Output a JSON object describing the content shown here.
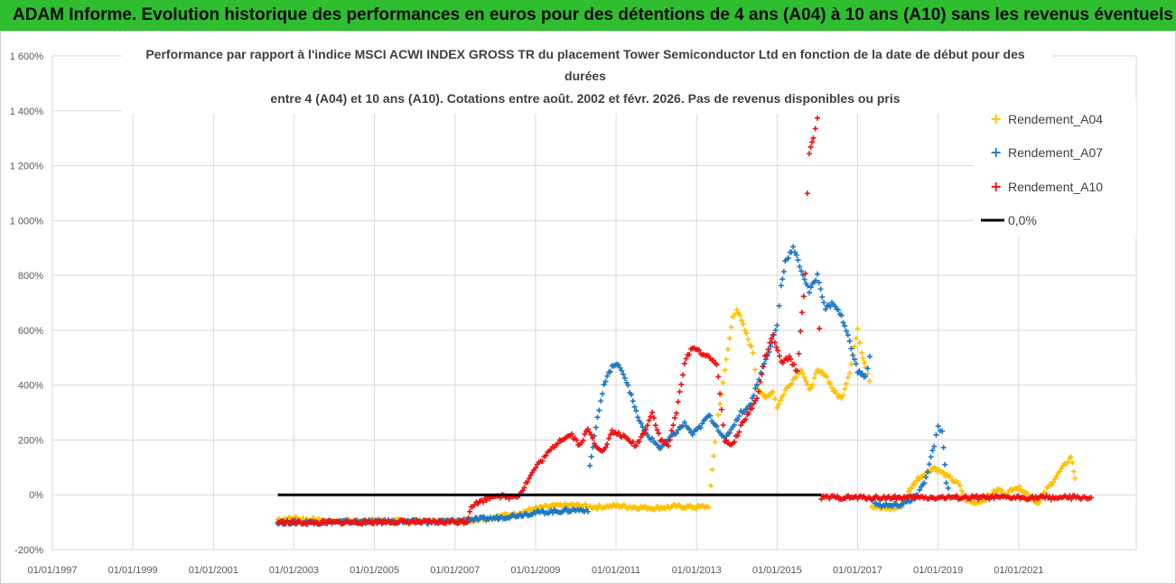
{
  "header": {
    "banner": "ADAM Informe. Evolution historique des performances en euros pour des détentions de 4 ans (A04) à 10 ans (A10) sans les revenus éventuels"
  },
  "colors": {
    "banner_bg": "#2fbe2f",
    "a04": "#ffc000",
    "a07": "#1f77c4",
    "a10": "#ee1111",
    "zero": "#000000"
  },
  "chart_data": {
    "type": "scatter",
    "title_lines": [
      "Performance par rapport à l'indice MSCI ACWI INDEX GROSS TR  du placement Tower Semiconductor Ltd en fonction de la date de début pour des",
      "durées",
      "entre 4 (A04) et 10 ans (A10).  Cotations entre août. 2002 et févr. 2026. Pas de revenus disponibles ou pris"
    ],
    "xlim": [
      1997.0,
      2023.92
    ],
    "ylim": [
      -200,
      1600
    ],
    "y_ticks": [
      -200,
      0,
      200,
      400,
      600,
      800,
      1000,
      1200,
      1400,
      1600
    ],
    "y_tick_labels": [
      "-200%",
      "0%",
      "200%",
      "400%",
      "600%",
      "800%",
      "1 000%",
      "1 200%",
      "1 400%",
      "1 600%"
    ],
    "x_ticks": [
      1997,
      1999,
      2001,
      2003,
      2005,
      2007,
      2009,
      2011,
      2013,
      2015,
      2017,
      2019,
      2021
    ],
    "x_tick_labels": [
      "01/01/1997",
      "01/01/1999",
      "01/01/2001",
      "01/01/2003",
      "01/01/2005",
      "01/01/2007",
      "01/01/2009",
      "01/01/2011",
      "01/01/2013",
      "01/01/2015",
      "01/01/2017",
      "01/01/2019",
      "01/01/2021"
    ],
    "legend": [
      "Rendement_A04",
      "Rendement_A07",
      "Rendement_A10",
      "0,0%"
    ],
    "series": [
      {
        "name": "Rendement_A04",
        "points": [
          [
            2002.6,
            -90
          ],
          [
            2003.0,
            -85
          ],
          [
            2003.5,
            -92
          ],
          [
            2004.0,
            -95
          ],
          [
            2005.0,
            -95
          ],
          [
            2006.0,
            -97
          ],
          [
            2007.0,
            -96
          ],
          [
            2007.5,
            -90
          ],
          [
            2008.0,
            -80
          ],
          [
            2008.5,
            -70
          ],
          [
            2009.0,
            -50
          ],
          [
            2009.5,
            -40
          ],
          [
            2010.0,
            -38
          ],
          [
            2010.5,
            -45
          ],
          [
            2011.0,
            -40
          ],
          [
            2011.5,
            -45
          ],
          [
            2012.0,
            -48
          ],
          [
            2012.5,
            -42
          ],
          [
            2013.0,
            -45
          ],
          [
            2013.3,
            -42
          ],
          [
            2013.35,
            30
          ],
          [
            2013.5,
            250
          ],
          [
            2013.7,
            450
          ],
          [
            2013.9,
            650
          ],
          [
            2014.0,
            680
          ],
          [
            2014.2,
            600
          ],
          [
            2014.4,
            520
          ],
          [
            2014.5,
            400
          ],
          [
            2014.7,
            350
          ],
          [
            2014.9,
            380
          ],
          [
            2015.0,
            320
          ],
          [
            2015.2,
            380
          ],
          [
            2015.4,
            420
          ],
          [
            2015.6,
            460
          ],
          [
            2015.8,
            380
          ],
          [
            2016.0,
            450
          ],
          [
            2016.2,
            440
          ],
          [
            2016.4,
            380
          ],
          [
            2016.6,
            350
          ],
          [
            2016.8,
            450
          ],
          [
            2017.0,
            600
          ],
          [
            2017.1,
            520
          ],
          [
            2017.2,
            470
          ],
          [
            2017.3,
            420
          ],
          [
            2017.35,
            -40
          ],
          [
            2017.6,
            -50
          ],
          [
            2017.9,
            -50
          ],
          [
            2018.1,
            -40
          ],
          [
            2018.3,
            20
          ],
          [
            2018.5,
            60
          ],
          [
            2018.7,
            80
          ],
          [
            2018.9,
            100
          ],
          [
            2019.1,
            80
          ],
          [
            2019.3,
            60
          ],
          [
            2019.5,
            40
          ],
          [
            2019.7,
            -20
          ],
          [
            2019.9,
            -30
          ],
          [
            2020.1,
            -20
          ],
          [
            2020.3,
            0
          ],
          [
            2020.5,
            20
          ],
          [
            2020.7,
            0
          ],
          [
            2020.9,
            30
          ],
          [
            2021.1,
            20
          ],
          [
            2021.3,
            -10
          ],
          [
            2021.5,
            -30
          ],
          [
            2021.7,
            20
          ],
          [
            2021.9,
            60
          ],
          [
            2022.1,
            100
          ],
          [
            2022.3,
            140
          ],
          [
            2022.4,
            60
          ]
        ]
      },
      {
        "name": "Rendement_A07",
        "points": [
          [
            2002.6,
            -100
          ],
          [
            2003.5,
            -100
          ],
          [
            2004.5,
            -98
          ],
          [
            2005.5,
            -97
          ],
          [
            2006.5,
            -99
          ],
          [
            2007.5,
            -90
          ],
          [
            2008.0,
            -85
          ],
          [
            2008.5,
            -75
          ],
          [
            2009.0,
            -65
          ],
          [
            2009.5,
            -60
          ],
          [
            2010.0,
            -55
          ],
          [
            2010.3,
            -55
          ],
          [
            2010.35,
            100
          ],
          [
            2010.5,
            250
          ],
          [
            2010.7,
            400
          ],
          [
            2010.9,
            470
          ],
          [
            2011.1,
            470
          ],
          [
            2011.3,
            400
          ],
          [
            2011.5,
            300
          ],
          [
            2011.7,
            230
          ],
          [
            2011.9,
            200
          ],
          [
            2012.1,
            170
          ],
          [
            2012.3,
            200
          ],
          [
            2012.5,
            230
          ],
          [
            2012.7,
            260
          ],
          [
            2012.9,
            220
          ],
          [
            2013.1,
            250
          ],
          [
            2013.3,
            290
          ],
          [
            2013.5,
            250
          ],
          [
            2013.7,
            200
          ],
          [
            2013.9,
            250
          ],
          [
            2014.1,
            300
          ],
          [
            2014.3,
            320
          ],
          [
            2014.5,
            400
          ],
          [
            2014.6,
            450
          ],
          [
            2014.8,
            520
          ],
          [
            2015.0,
            620
          ],
          [
            2015.1,
            760
          ],
          [
            2015.2,
            850
          ],
          [
            2015.4,
            900
          ],
          [
            2015.6,
            820
          ],
          [
            2015.8,
            740
          ],
          [
            2016.0,
            800
          ],
          [
            2016.2,
            680
          ],
          [
            2016.4,
            700
          ],
          [
            2016.6,
            650
          ],
          [
            2016.8,
            560
          ],
          [
            2017.0,
            450
          ],
          [
            2017.2,
            430
          ],
          [
            2017.3,
            500
          ],
          [
            2017.35,
            -20
          ],
          [
            2017.6,
            -40
          ],
          [
            2017.9,
            -40
          ],
          [
            2018.1,
            -35
          ],
          [
            2018.3,
            -20
          ],
          [
            2018.5,
            0
          ],
          [
            2018.7,
            60
          ],
          [
            2018.9,
            180
          ],
          [
            2019.0,
            250
          ],
          [
            2019.1,
            230
          ],
          [
            2019.2,
            50
          ],
          [
            2019.3,
            -10
          ]
        ]
      },
      {
        "name": "Rendement_A10",
        "points": [
          [
            2002.6,
            -100
          ],
          [
            2003.5,
            -102
          ],
          [
            2004.5,
            -100
          ],
          [
            2005.5,
            -98
          ],
          [
            2006.5,
            -100
          ],
          [
            2007.3,
            -98
          ],
          [
            2007.4,
            -40
          ],
          [
            2007.7,
            -20
          ],
          [
            2008.0,
            0
          ],
          [
            2008.3,
            -10
          ],
          [
            2008.6,
            0
          ],
          [
            2008.8,
            50
          ],
          [
            2009.0,
            100
          ],
          [
            2009.3,
            150
          ],
          [
            2009.6,
            200
          ],
          [
            2009.9,
            220
          ],
          [
            2010.1,
            180
          ],
          [
            2010.3,
            240
          ],
          [
            2010.5,
            180
          ],
          [
            2010.7,
            160
          ],
          [
            2010.9,
            230
          ],
          [
            2011.1,
            220
          ],
          [
            2011.3,
            200
          ],
          [
            2011.5,
            180
          ],
          [
            2011.7,
            230
          ],
          [
            2011.9,
            300
          ],
          [
            2012.1,
            200
          ],
          [
            2012.3,
            180
          ],
          [
            2012.5,
            300
          ],
          [
            2012.7,
            480
          ],
          [
            2012.9,
            540
          ],
          [
            2013.1,
            520
          ],
          [
            2013.3,
            500
          ],
          [
            2013.5,
            480
          ],
          [
            2013.7,
            200
          ],
          [
            2013.9,
            180
          ],
          [
            2014.1,
            250
          ],
          [
            2014.3,
            300
          ],
          [
            2014.5,
            350
          ],
          [
            2014.7,
            500
          ],
          [
            2014.9,
            580
          ],
          [
            2015.1,
            480
          ],
          [
            2015.3,
            500
          ],
          [
            2015.5,
            450
          ],
          [
            2015.7,
            800
          ],
          [
            2015.75,
            1100
          ],
          [
            2015.8,
            1250
          ],
          [
            2015.9,
            1300
          ],
          [
            2016.0,
            1380
          ],
          [
            2016.05,
            600
          ],
          [
            2016.1,
            -10
          ],
          [
            2016.5,
            -10
          ],
          [
            2017.0,
            -10
          ],
          [
            2017.5,
            -10
          ],
          [
            2018.0,
            -10
          ],
          [
            2018.5,
            -10
          ],
          [
            2019.0,
            -10
          ],
          [
            2019.5,
            -10
          ],
          [
            2020.0,
            -10
          ],
          [
            2020.5,
            -10
          ],
          [
            2021.0,
            -10
          ],
          [
            2021.5,
            -10
          ],
          [
            2022.0,
            -10
          ],
          [
            2022.5,
            -10
          ],
          [
            2022.8,
            -10
          ]
        ]
      }
    ],
    "zero_line": {
      "name": "0,0%",
      "x_range": [
        2002.6,
        2016.1
      ],
      "y": 0
    }
  }
}
